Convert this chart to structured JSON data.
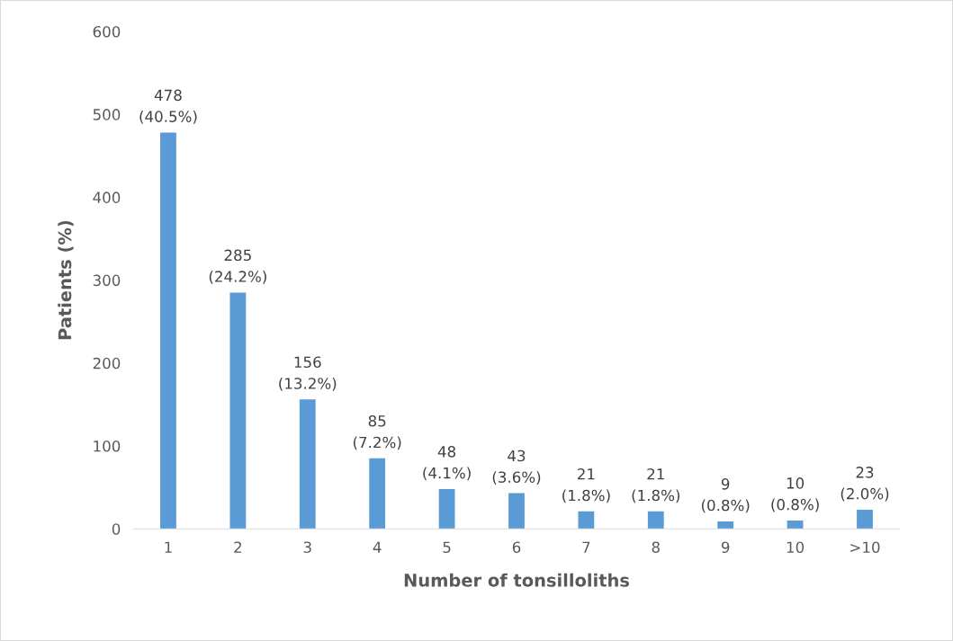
{
  "chart_data": {
    "type": "bar",
    "xlabel": "Number of tonsilloliths",
    "ylabel": "Patients (%)",
    "categories": [
      "1",
      "2",
      "3",
      "4",
      "5",
      "6",
      "7",
      "8",
      "9",
      "10",
      ">10"
    ],
    "values": [
      478,
      285,
      156,
      85,
      48,
      43,
      21,
      21,
      9,
      10,
      23
    ],
    "value_labels": [
      "478\n(40.5%)",
      "285\n(24.2%)",
      "156\n(13.2%)",
      "85\n(7.2%)",
      "48\n(4.1%)",
      "43\n(3.6%)",
      "21\n(1.8%)",
      "21\n(1.8%)",
      "9\n(0.8%)",
      "10\n(0.8%)",
      "23\n(2.0%)"
    ],
    "color": "#5b9bd5",
    "ylim": [
      0,
      600
    ],
    "yticks": [
      0,
      100,
      200,
      300,
      400,
      500,
      600
    ],
    "grid": false,
    "legend": false
  }
}
